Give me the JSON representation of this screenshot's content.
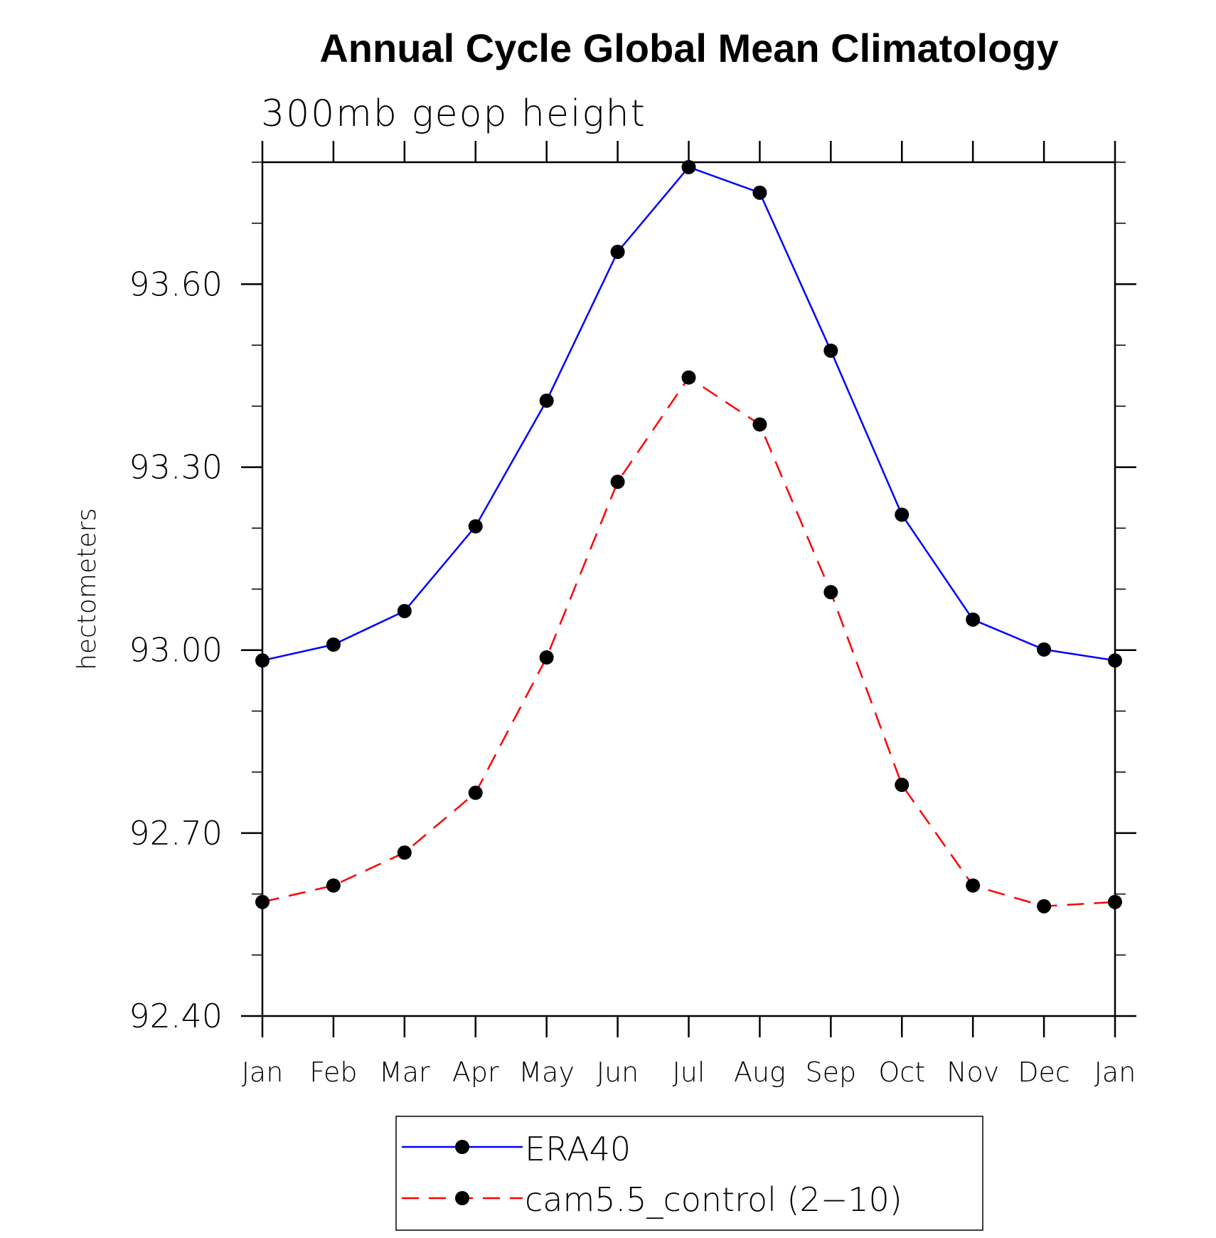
{
  "chart_data": {
    "type": "line",
    "title": "Annual Cycle Global Mean Climatology",
    "subtitle": "300mb geop height",
    "ylabel": "hectometers",
    "xlabel": "",
    "categories": [
      "Jan",
      "Feb",
      "Mar",
      "Apr",
      "May",
      "Jun",
      "Jul",
      "Aug",
      "Sep",
      "Oct",
      "Nov",
      "Dec",
      "Jan"
    ],
    "ylim": [
      92.4,
      93.8
    ],
    "yticks": [
      "92.40",
      "92.70",
      "93.00",
      "93.30",
      "93.60"
    ],
    "grid": false,
    "legend_position": "bottom",
    "series": [
      {
        "name": "ERA40",
        "color": "#0000ff",
        "dash": "solid",
        "values": [
          92.983,
          93.009,
          93.064,
          93.203,
          93.409,
          93.653,
          93.792,
          93.75,
          93.491,
          93.222,
          93.05,
          93.001,
          92.983
        ]
      },
      {
        "name": "cam5.5_control (2−10)",
        "color": "#ff0000",
        "dash": "dashed",
        "values": [
          92.587,
          92.614,
          92.668,
          92.766,
          92.988,
          93.276,
          93.447,
          93.37,
          93.095,
          92.779,
          92.614,
          92.58,
          92.587
        ]
      }
    ]
  }
}
